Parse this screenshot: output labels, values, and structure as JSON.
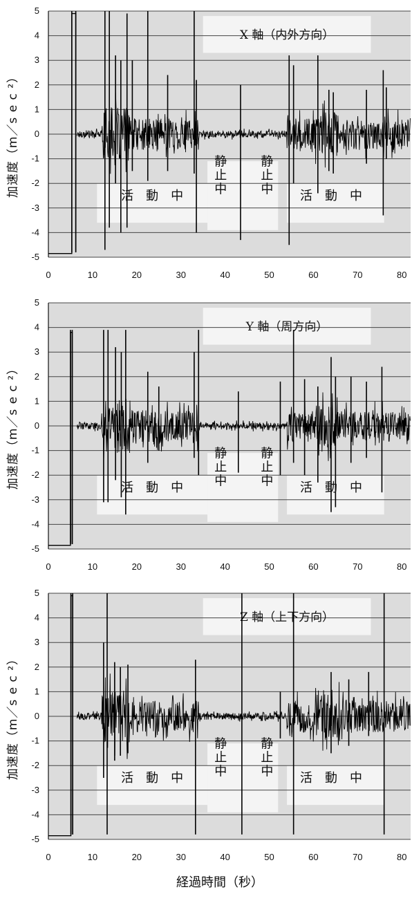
{
  "chart_data": [
    {
      "type": "line",
      "title": "X 軸（内外方向）",
      "ylabel": "加速度（m／s e c ²）",
      "xlabel": "",
      "xlim": [
        0,
        82
      ],
      "ylim": [
        -5,
        5
      ],
      "xticks": [
        "0",
        "10",
        "20",
        "30",
        "40",
        "50",
        "60",
        "70",
        "80"
      ],
      "yticks": [
        "5",
        "4",
        "3",
        "2",
        "1",
        "0",
        "-1",
        "-2",
        "-3",
        "-4",
        "-5"
      ],
      "grid": "horizontal",
      "annotations": [
        {
          "text": "活　動　中",
          "x": 23.5,
          "y": -2.5
        },
        {
          "text": "静止中",
          "x": 39,
          "y": -1.9
        },
        {
          "text": "静止中",
          "x": 49.5,
          "y": -1.9
        },
        {
          "text": "活　動　中",
          "x": 64,
          "y": -2.5
        }
      ],
      "active_segments": [
        [
          12,
          34
        ],
        [
          54,
          82
        ]
      ],
      "spikes": [
        [
          5.3,
          5,
          -4.8
        ],
        [
          6.2,
          5,
          -4.8
        ],
        [
          12.8,
          5,
          -4.7
        ],
        [
          13.8,
          5,
          -3.8
        ],
        [
          15.2,
          3.2,
          -2.0
        ],
        [
          16.4,
          3.0,
          -4.0
        ],
        [
          17.8,
          4.9,
          -3.8
        ],
        [
          19.0,
          3.0,
          -1.5
        ],
        [
          22.5,
          5,
          -1.9
        ],
        [
          27.0,
          2.4,
          -1.5
        ],
        [
          33.0,
          5,
          -1.6
        ],
        [
          33.5,
          2.2,
          -4.0
        ],
        [
          43.5,
          2.0,
          -4.3
        ],
        [
          54.5,
          3.2,
          -4.5
        ],
        [
          55.5,
          2.8,
          -2.0
        ],
        [
          61.0,
          3.2,
          -2.4
        ],
        [
          63.5,
          1.8,
          -1.5
        ],
        [
          64.5,
          1.7,
          -1.6
        ],
        [
          72.0,
          1.8,
          -1.2
        ],
        [
          75.8,
          2.6,
          -3.3
        ],
        [
          76.5,
          1.9,
          -1.0
        ]
      ]
    },
    {
      "type": "line",
      "title": "Y 軸（周方向）",
      "ylabel": "加速度（m／s e c ²）",
      "xlabel": "",
      "xlim": [
        0,
        82
      ],
      "ylim": [
        -5,
        5
      ],
      "xticks": [
        "0",
        "10",
        "20",
        "30",
        "40",
        "50",
        "60",
        "70",
        "80"
      ],
      "yticks": [
        "5",
        "4",
        "3",
        "2",
        "1",
        "0",
        "-1",
        "-2",
        "-3",
        "-4",
        "-5"
      ],
      "grid": "horizontal",
      "annotations": [
        {
          "text": "活　動　中",
          "x": 23.5,
          "y": -2.5
        },
        {
          "text": "静止中",
          "x": 39,
          "y": -1.9
        },
        {
          "text": "静止中",
          "x": 49.5,
          "y": -1.9
        },
        {
          "text": "活　動　中",
          "x": 64,
          "y": -2.5
        }
      ],
      "active_segments": [
        [
          12,
          34
        ],
        [
          54,
          82
        ]
      ],
      "spikes": [
        [
          5.0,
          3.9,
          -4.8
        ],
        [
          5.4,
          3.9,
          -4.8
        ],
        [
          12.5,
          3.9,
          -3.1
        ],
        [
          13.5,
          3.9,
          -3.1
        ],
        [
          15.2,
          3.2,
          -2.2
        ],
        [
          16.5,
          3.0,
          -2.9
        ],
        [
          17.5,
          3.9,
          -3.6
        ],
        [
          22.5,
          2.2,
          -1.5
        ],
        [
          25.0,
          1.6,
          -1.0
        ],
        [
          33.0,
          3.0,
          -1.3
        ],
        [
          34.0,
          3.9,
          -2.0
        ],
        [
          43.0,
          1.4,
          -1.9
        ],
        [
          52.5,
          1.8,
          -2.0
        ],
        [
          55.5,
          3.9,
          -1.5
        ],
        [
          58.0,
          1.9,
          -2.0
        ],
        [
          61.0,
          1.6,
          -2.3
        ],
        [
          64.0,
          2.8,
          -3.5
        ],
        [
          65.0,
          2.0,
          -3.3
        ],
        [
          68.5,
          2.0,
          -1.5
        ],
        [
          72.0,
          1.8,
          -1.3
        ],
        [
          75.5,
          2.4,
          -2.7
        ]
      ]
    },
    {
      "type": "line",
      "title": "Z 軸（上下方向）",
      "ylabel": "加速度（m／s e c ²）",
      "xlabel": "経過時間（秒）",
      "xlim": [
        0,
        82
      ],
      "ylim": [
        -5,
        5
      ],
      "xticks": [
        "0",
        "10",
        "20",
        "30",
        "40",
        "50",
        "60",
        "70",
        "80"
      ],
      "yticks": [
        "5",
        "4",
        "3",
        "2",
        "1",
        "0",
        "-1",
        "-2",
        "-3",
        "-4",
        "-5"
      ],
      "grid": "horizontal",
      "annotations": [
        {
          "text": "活　動　中",
          "x": 23.5,
          "y": -2.5
        },
        {
          "text": "静止中",
          "x": 39,
          "y": -1.9
        },
        {
          "text": "静止中",
          "x": 49.5,
          "y": -1.9
        },
        {
          "text": "活　動　中",
          "x": 64,
          "y": -2.5
        }
      ],
      "active_segments": [
        [
          12,
          34
        ],
        [
          54,
          82
        ]
      ],
      "spikes": [
        [
          5.1,
          5,
          -4.8
        ],
        [
          5.5,
          5,
          -4.8
        ],
        [
          12.5,
          3.0,
          -2.5
        ],
        [
          13.3,
          5,
          -4.8
        ],
        [
          15.0,
          2.2,
          -1.8
        ],
        [
          16.3,
          2.0,
          -1.6
        ],
        [
          18.0,
          2.1,
          -1.5
        ],
        [
          33.3,
          2.3,
          -4.8
        ],
        [
          43.8,
          5,
          -4.8
        ],
        [
          52.5,
          1.0,
          -0.9
        ],
        [
          55.5,
          5,
          -4.8
        ],
        [
          64.0,
          1.8,
          -1.5
        ],
        [
          68.0,
          1.5,
          -1.2
        ],
        [
          72.5,
          1.8,
          -0.8
        ],
        [
          76.0,
          5,
          -4.8
        ]
      ]
    }
  ]
}
